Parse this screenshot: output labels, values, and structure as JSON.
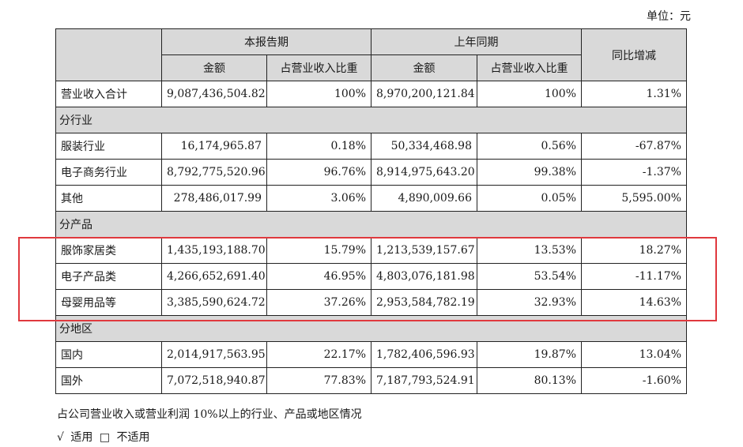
{
  "unit_label": "单位：元",
  "header": {
    "current_period": "本报告期",
    "prior_period": "上年同期",
    "yoy_change": "同比增减",
    "amount": "金额",
    "share": "占营业收入比重"
  },
  "total": {
    "label": "营业收入合计",
    "cur_amount": "9,087,436,504.82",
    "cur_share": "100%",
    "prev_amount": "8,970,200,121.84",
    "prev_share": "100%",
    "change": "1.31%"
  },
  "sections": {
    "industry": "分行业",
    "product": "分产品",
    "region": "分地区"
  },
  "industry_rows": [
    {
      "label": "服装行业",
      "cur_amount": "16,174,965.87",
      "cur_share": "0.18%",
      "prev_amount": "50,334,468.98",
      "prev_share": "0.56%",
      "change": "-67.87%"
    },
    {
      "label": "电子商务行业",
      "cur_amount": "8,792,775,520.96",
      "cur_share": "96.76%",
      "prev_amount": "8,914,975,643.20",
      "prev_share": "99.38%",
      "change": "-1.37%"
    },
    {
      "label": "其他",
      "cur_amount": "278,486,017.99",
      "cur_share": "3.06%",
      "prev_amount": "4,890,009.66",
      "prev_share": "0.05%",
      "change": "5,595.00%"
    }
  ],
  "product_rows": [
    {
      "label": "服饰家居类",
      "cur_amount": "1,435,193,188.70",
      "cur_share": "15.79%",
      "prev_amount": "1,213,539,157.67",
      "prev_share": "13.53%",
      "change": "18.27%"
    },
    {
      "label": "电子产品类",
      "cur_amount": "4,266,652,691.40",
      "cur_share": "46.95%",
      "prev_amount": "4,803,076,181.98",
      "prev_share": "53.54%",
      "change": "-11.17%"
    },
    {
      "label": "母婴用品等",
      "cur_amount": "3,385,590,624.72",
      "cur_share": "37.26%",
      "prev_amount": "2,953,584,782.19",
      "prev_share": "32.93%",
      "change": "14.63%"
    }
  ],
  "region_rows": [
    {
      "label": "国内",
      "cur_amount": "2,014,917,563.95",
      "cur_share": "22.17%",
      "prev_amount": "1,782,406,596.93",
      "prev_share": "19.87%",
      "change": "13.04%"
    },
    {
      "label": "国外",
      "cur_amount": "7,072,518,940.87",
      "cur_share": "77.83%",
      "prev_amount": "7,187,793,524.91",
      "prev_share": "80.13%",
      "change": "-1.60%"
    }
  ],
  "note": "占公司营业收入或营业利润 10%以上的行业、产品或地区情况",
  "options": {
    "applicable_mark": "√",
    "applicable": "适用",
    "not_applicable_mark": "□",
    "not_applicable": "不适用"
  },
  "colors": {
    "header_bg": "#d9d9d9",
    "highlight": "#e0393e"
  }
}
